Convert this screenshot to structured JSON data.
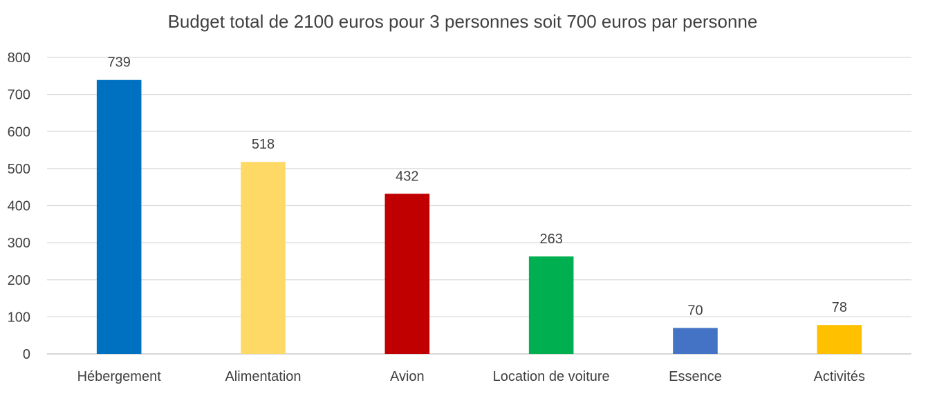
{
  "chart_data": {
    "type": "bar",
    "title": "Budget total de 2100 euros pour 3 personnes soit 700 euros par personne",
    "xlabel": "",
    "ylabel": "",
    "ylim": [
      0,
      800
    ],
    "yticks": [
      0,
      100,
      200,
      300,
      400,
      500,
      600,
      700,
      800
    ],
    "grid": true,
    "legend": "none",
    "categories": [
      "Hébergement",
      "Alimentation",
      "Avion",
      "Location de voiture",
      "Essence",
      "Activités"
    ],
    "values": [
      739,
      518,
      432,
      263,
      70,
      78
    ],
    "colors": [
      "#0070c0",
      "#ffd966",
      "#c00000",
      "#00b050",
      "#4472c4",
      "#ffc000"
    ]
  }
}
